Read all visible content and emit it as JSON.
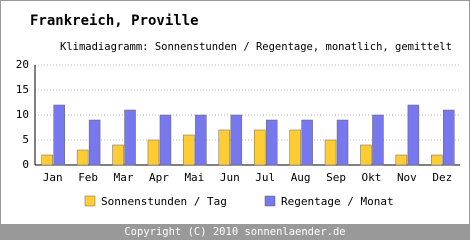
{
  "chart_data": {
    "type": "bar",
    "title": "Frankreich, Proville",
    "subtitle": "Klimadiagramm: Sonnenstunden / Regentage, monatlich, gemittelt",
    "categories": [
      "Jan",
      "Feb",
      "Mar",
      "Apr",
      "Mai",
      "Jun",
      "Jul",
      "Aug",
      "Sep",
      "Okt",
      "Nov",
      "Dez"
    ],
    "series": [
      {
        "name": "Sonnenstunden / Tag",
        "color": "#ffcc33",
        "values": [
          2,
          3,
          4,
          5,
          6,
          7,
          7,
          7,
          5,
          4,
          2,
          2
        ]
      },
      {
        "name": "Regentage / Monat",
        "color": "#7777ee",
        "values": [
          12,
          9,
          11,
          10,
          10,
          10,
          9,
          9,
          9,
          10,
          12,
          11
        ]
      }
    ],
    "ylim": [
      0,
      20
    ],
    "yticks": [
      0,
      5,
      10,
      15,
      20
    ],
    "grid": true,
    "legend": "bottom",
    "footer": "Copyright (C) 2010 sonnenlaender.de"
  }
}
